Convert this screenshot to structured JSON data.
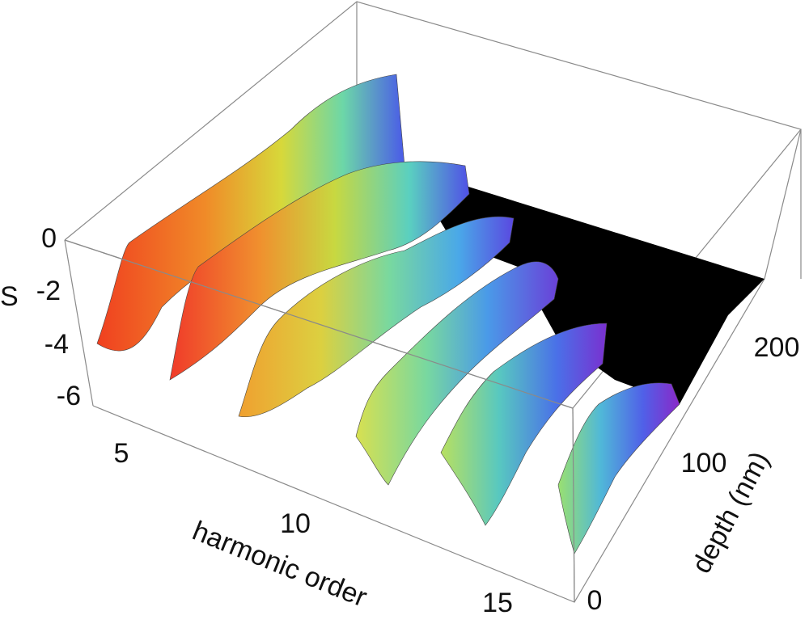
{
  "chart_data": {
    "type": "surface3d",
    "xlabel": "harmonic order",
    "ylabel": "depth (nm)",
    "zlabel": "S",
    "zlabel_superscript": "",
    "x_ticks": [
      "5",
      "10",
      "15"
    ],
    "y_ticks": [
      "0",
      "100",
      "200"
    ],
    "z_ticks": [
      "0",
      "-2",
      "-4",
      "-6"
    ],
    "xlim": [
      3.5,
      16.5
    ],
    "ylim": [
      0,
      260
    ],
    "zlim": [
      -7,
      0
    ],
    "grid": false,
    "colormap": "rainbow",
    "background_floor_color": "#000000",
    "series": [
      {
        "harmonic": 5,
        "peak_s": -0.3,
        "extent_nm": 260
      },
      {
        "harmonic": 7,
        "peak_s": -0.5,
        "extent_nm": 240
      },
      {
        "harmonic": 9,
        "peak_s": -1.8,
        "extent_nm": 180
      },
      {
        "harmonic": 11,
        "peak_s": -2.6,
        "extent_nm": 160
      },
      {
        "harmonic": 13,
        "peak_s": -3.1,
        "extent_nm": 140
      },
      {
        "harmonic": 15,
        "peak_s": -3.8,
        "extent_nm": 110
      }
    ]
  }
}
